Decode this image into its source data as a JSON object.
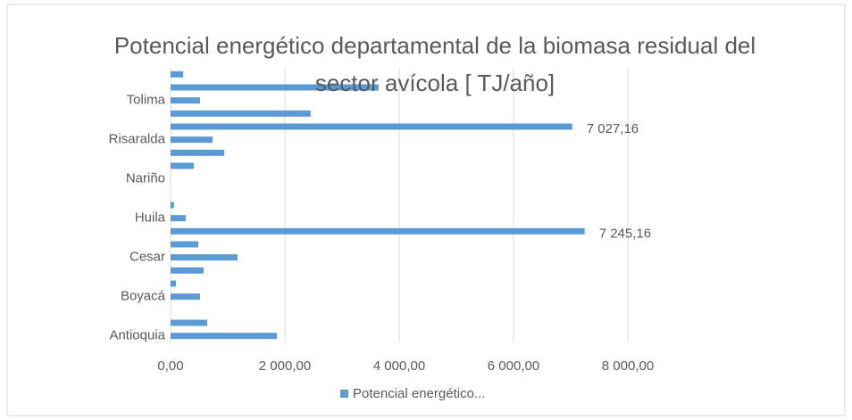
{
  "chart_data": {
    "type": "barh",
    "title": "Potencial energético departamental de la biomasa residual del sector avícola [ TJ/año]",
    "categories": [
      "Antioquia",
      null,
      null,
      "Boyacá",
      null,
      null,
      "Cesar",
      null,
      null,
      "Huila",
      null,
      null,
      "Nariño",
      null,
      null,
      "Risaralda",
      null,
      null,
      "Tolima",
      null,
      null
    ],
    "series": [
      {
        "name": "Potencial energético...",
        "color": "#5b9bd5",
        "values": [
          1860,
          640,
          0,
          515,
          94,
          580,
          1170,
          485,
          7245.16,
          265,
          60,
          0,
          0,
          405,
          940,
          735,
          7027.16,
          2450,
          515,
          3640,
          220
        ],
        "value_labels": [
          null,
          null,
          null,
          null,
          null,
          null,
          null,
          null,
          "7 245,16",
          null,
          null,
          null,
          null,
          null,
          null,
          null,
          "7 027,16",
          null,
          null,
          null,
          null
        ]
      }
    ],
    "xlim": [
      0,
      8000
    ],
    "xticks": [
      {
        "value": 0,
        "label": "0,00"
      },
      {
        "value": 2000,
        "label": "2 000,00"
      },
      {
        "value": 4000,
        "label": "4 000,00"
      },
      {
        "value": 6000,
        "label": "6 000,00"
      },
      {
        "value": 8000,
        "label": "8 000,00"
      }
    ],
    "grid": true,
    "legend": "bottom"
  }
}
